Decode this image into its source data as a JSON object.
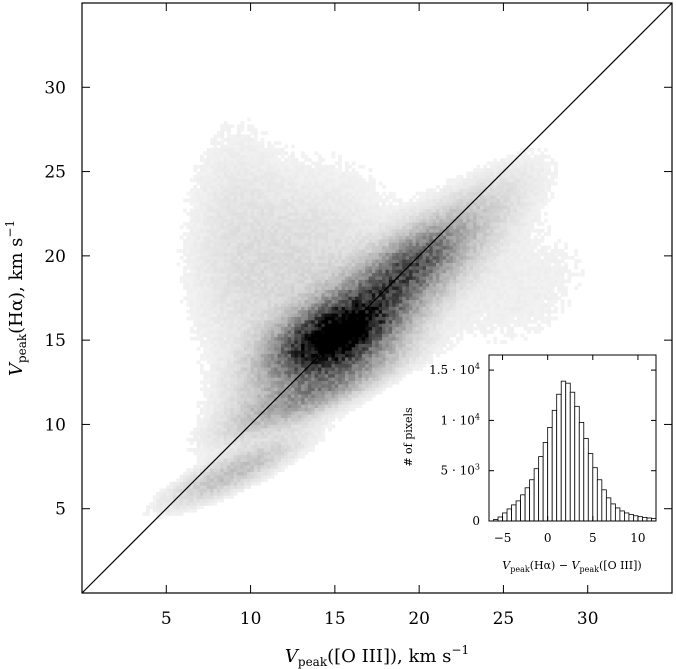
{
  "chart_data": [
    {
      "type": "heatmap",
      "xlabel": {
        "base": "V",
        "sub": "peak",
        "rest": "([O III]),   km s",
        "sup": "−1"
      },
      "ylabel": {
        "base": "V",
        "sub": "peak",
        "rest": "(Hα),   km s",
        "sup": "−1"
      },
      "xlim": [
        0,
        35
      ],
      "ylim": [
        0,
        35
      ],
      "xticks": [
        "5",
        "10",
        "15",
        "20",
        "25",
        "30"
      ],
      "yticks": [
        "5",
        "10",
        "15",
        "20",
        "25",
        "30"
      ],
      "xtick_values": [
        5,
        10,
        15,
        20,
        25,
        30
      ],
      "ytick_values": [
        5,
        10,
        15,
        20,
        25,
        30
      ],
      "reference_line": {
        "from": [
          0,
          0
        ],
        "to": [
          35,
          35
        ]
      },
      "colormap": "greyscale (white = few pixels, black = many)",
      "density_components": [
        {
          "cx": 15.0,
          "cy": 15.2,
          "sx": 2.0,
          "sy": 1.3,
          "rho": 0.45,
          "w": 1.0
        },
        {
          "cx": 16.5,
          "cy": 16.5,
          "sx": 3.5,
          "sy": 2.8,
          "rho": 0.8,
          "w": 0.55
        },
        {
          "cx": 19.5,
          "cy": 19.5,
          "sx": 1.8,
          "sy": 1.4,
          "rho": 0.7,
          "w": 0.35
        },
        {
          "cx": 14.0,
          "cy": 12.0,
          "sx": 3.0,
          "sy": 1.5,
          "rho": 0.85,
          "w": 0.3
        },
        {
          "cx": 9.0,
          "cy": 7.2,
          "sx": 2.5,
          "sy": 1.3,
          "rho": 0.85,
          "w": 0.18
        },
        {
          "cx": 13.0,
          "cy": 19.0,
          "sx": 3.5,
          "sy": 4.0,
          "rho": 0.2,
          "w": 0.08
        },
        {
          "cx": 22.0,
          "cy": 21.5,
          "sx": 3.2,
          "sy": 2.5,
          "rho": 0.8,
          "w": 0.1
        },
        {
          "cx": 9.0,
          "cy": 22.0,
          "sx": 2.0,
          "sy": 4.5,
          "rho": 0.0,
          "w": 0.04
        },
        {
          "cx": 26.0,
          "cy": 18.0,
          "sx": 3.5,
          "sy": 3.0,
          "rho": 0.3,
          "w": 0.03
        }
      ]
    },
    {
      "type": "bar",
      "title": "",
      "xlabel": {
        "a": "V",
        "asub": "peak",
        "arest": "(Hα) − ",
        "b": "V",
        "bsub": "peak",
        "brest": "([O III])"
      },
      "ylabel": "# of pixels",
      "xlim": [
        -6.5,
        12
      ],
      "ylim": [
        0,
        16500
      ],
      "xticks": [
        "−5",
        "0",
        "5",
        "10"
      ],
      "xtick_values": [
        -5,
        0,
        5,
        10
      ],
      "yticks": [
        "0",
        "5 · 10",
        "1 · 10",
        "1.5 · 10"
      ],
      "ytick_sups": [
        "",
        "3",
        "4",
        "4"
      ],
      "ytick_values": [
        0,
        5000,
        10000,
        15000
      ],
      "bin_width": 0.5,
      "bin_start": -6.0,
      "values": [
        150,
        400,
        800,
        1200,
        1600,
        2000,
        2600,
        3300,
        4100,
        5200,
        6400,
        7800,
        9300,
        11000,
        12600,
        13900,
        13700,
        12800,
        11400,
        9800,
        8200,
        6700,
        5300,
        4100,
        3100,
        2300,
        1700,
        1300,
        1000,
        800,
        650,
        520,
        430,
        360,
        300,
        250
      ]
    }
  ]
}
